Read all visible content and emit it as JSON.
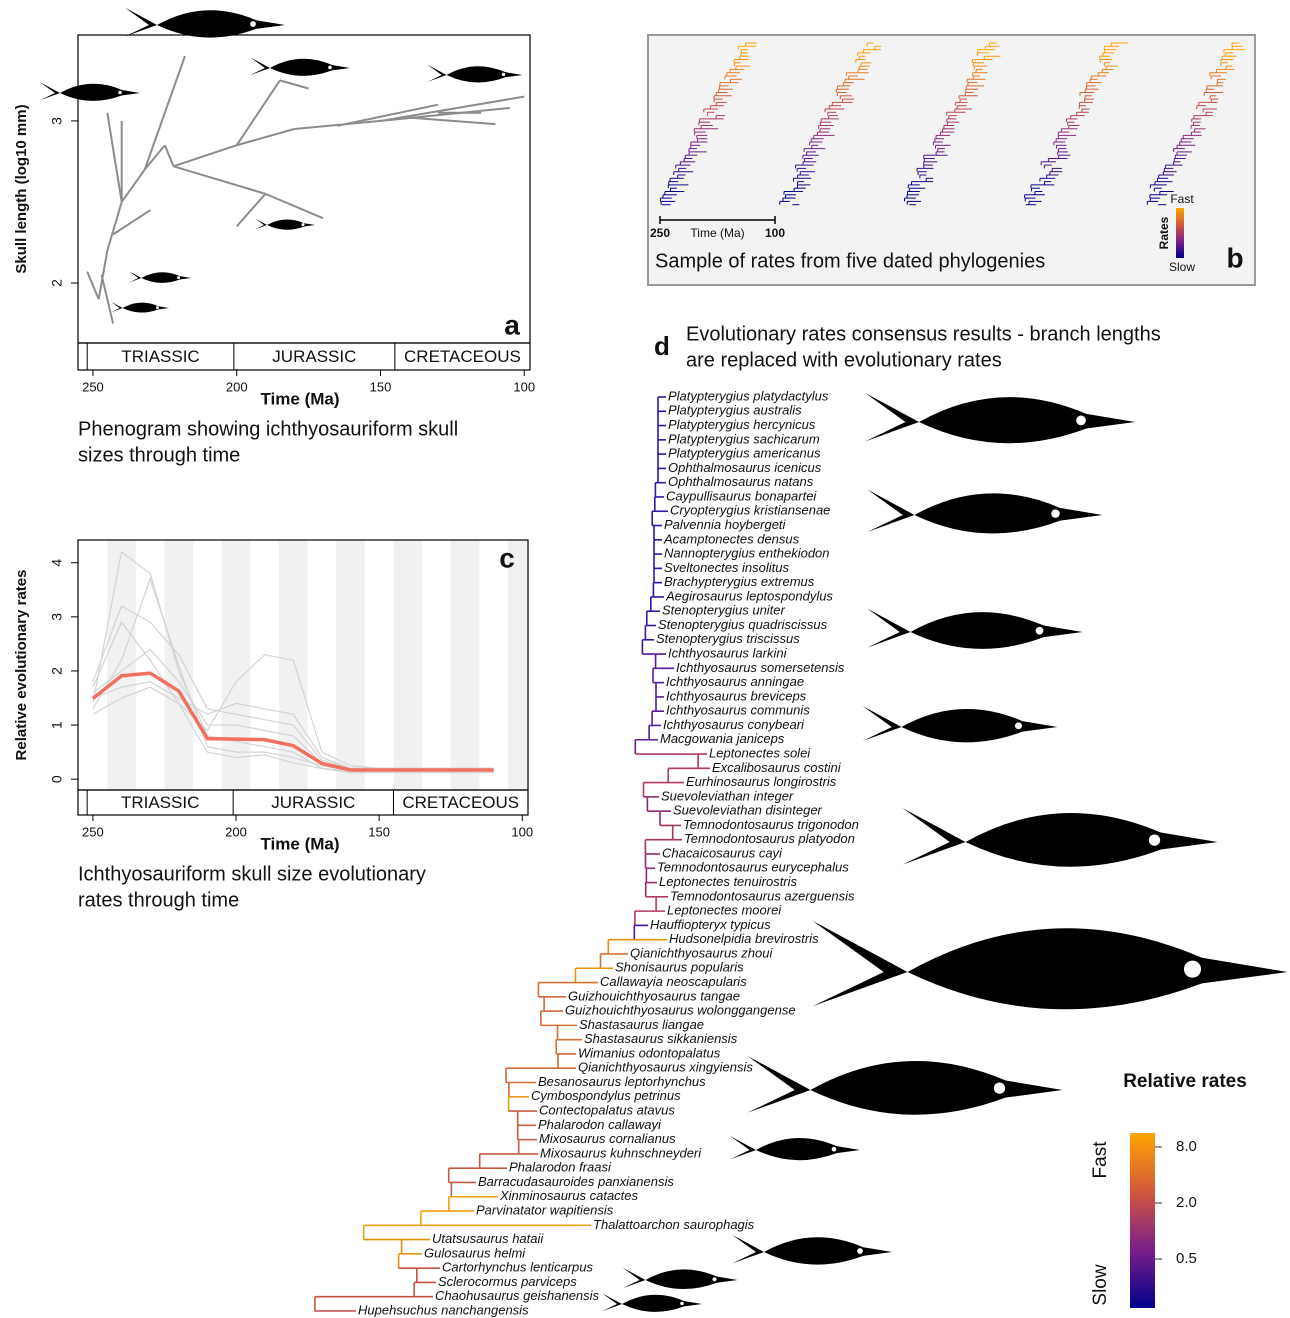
{
  "chart_data": [
    {
      "type": "phenogram",
      "panel": "a",
      "ylabel": "Skull length (log10 mm)",
      "xlabel": "Time (Ma)",
      "caption": [
        "Phenogram showing ichthyosauriform skull",
        "sizes through time"
      ],
      "xlim": [
        255.2,
        98
      ],
      "ylim": [
        1.63,
        3.53
      ],
      "xticks": [
        250,
        200,
        150,
        100
      ],
      "yticks": [
        2,
        3
      ],
      "color": "#8c8c8c",
      "periods": [
        {
          "name": "TRIASSIC",
          "start": 252
        },
        {
          "name": "JURASSIC",
          "start": 201
        },
        {
          "name": "CRETACEOUS",
          "start": 145
        }
      ],
      "branches": [
        {
          "x": [
            252,
            248
          ],
          "values": [
            2.07,
            1.9
          ]
        },
        {
          "x": [
            248,
            245
          ],
          "values": [
            1.9,
            2.2
          ]
        },
        {
          "x": [
            247,
            243
          ],
          "values": [
            2.05,
            1.75
          ]
        },
        {
          "x": [
            245,
            240
          ],
          "values": [
            2.2,
            2.5
          ]
        },
        {
          "x": [
            243,
            230
          ],
          "values": [
            2.3,
            2.45
          ]
        },
        {
          "x": [
            240,
            232
          ],
          "values": [
            2.5,
            2.7
          ]
        },
        {
          "x": [
            240,
            245
          ],
          "values": [
            2.5,
            3.05
          ]
        },
        {
          "x": [
            240,
            240
          ],
          "values": [
            2.5,
            3.0
          ]
        },
        {
          "x": [
            232,
            218
          ],
          "values": [
            2.7,
            3.4
          ]
        },
        {
          "x": [
            232,
            225
          ],
          "values": [
            2.7,
            2.85
          ]
        },
        {
          "x": [
            225,
            222
          ],
          "values": [
            2.85,
            2.72
          ]
        },
        {
          "x": [
            222,
            200
          ],
          "values": [
            2.72,
            2.85
          ]
        },
        {
          "x": [
            200,
            185
          ],
          "values": [
            2.85,
            3.25
          ]
        },
        {
          "x": [
            200,
            180
          ],
          "values": [
            2.85,
            2.95
          ]
        },
        {
          "x": [
            222,
            190
          ],
          "values": [
            2.72,
            2.55
          ]
        },
        {
          "x": [
            190,
            170
          ],
          "values": [
            2.55,
            2.4
          ]
        },
        {
          "x": [
            190,
            200
          ],
          "values": [
            2.55,
            2.35
          ]
        },
        {
          "x": [
            180,
            150
          ],
          "values": [
            2.95,
            3.0
          ]
        },
        {
          "x": [
            165,
            130
          ],
          "values": [
            2.97,
            3.1
          ]
        },
        {
          "x": [
            150,
            100
          ],
          "values": [
            3.0,
            3.15
          ]
        },
        {
          "x": [
            150,
            105
          ],
          "values": [
            3.0,
            3.08
          ]
        },
        {
          "x": [
            140,
            110
          ],
          "values": [
            3.02,
            2.98
          ]
        },
        {
          "x": [
            130,
            115
          ],
          "values": [
            3.05,
            3.05
          ]
        },
        {
          "x": [
            185,
            175
          ],
          "values": [
            3.25,
            3.2
          ]
        }
      ]
    },
    {
      "type": "sample",
      "panel": "b",
      "caption": "Sample of rates from five dated phylogenies",
      "xlabel": "Time (Ma)",
      "xlim": [
        250,
        100
      ],
      "xticks": [
        250,
        100
      ],
      "legend": {
        "title": "Rates",
        "high": "Fast",
        "low": "Slow"
      },
      "colors": [
        "#00008b",
        "#7a1f8a",
        "#d2583d",
        "#ffa500"
      ]
    },
    {
      "type": "line",
      "panel": "c",
      "ylabel": "Relative evolutionary rates",
      "xlabel": "Time (Ma)",
      "caption": [
        "Ichthyosauriform skull size evolutionary",
        "rates through time"
      ],
      "xlim": [
        255.2,
        98
      ],
      "ylim": [
        -0.2,
        4.42
      ],
      "xticks": [
        250,
        200,
        150,
        100
      ],
      "yticks": [
        0,
        1,
        2,
        3,
        4
      ],
      "periods": [
        {
          "name": "TRIASSIC",
          "start": 252
        },
        {
          "name": "JURASSIC",
          "start": 201
        },
        {
          "name": "CRETACEOUS",
          "start": 145
        }
      ],
      "x": [
        250,
        240,
        230,
        220,
        210,
        200,
        190,
        180,
        170,
        160,
        150,
        140,
        130,
        120,
        110
      ],
      "series": [
        {
          "color": "#d3d3d3",
          "values": [
            1.6,
            2.0,
            2.4,
            1.8,
            1.0,
            1.0,
            0.9,
            0.8,
            0.3,
            0.2,
            0.2,
            0.2,
            0.2,
            0.2,
            0.2
          ]
        },
        {
          "color": "#d3d3d3",
          "values": [
            1.4,
            4.2,
            3.8,
            2.0,
            0.8,
            0.7,
            0.6,
            0.5,
            0.2,
            0.15,
            0.15,
            0.15,
            0.15,
            0.15,
            0.15
          ]
        },
        {
          "color": "#d3d3d3",
          "values": [
            1.5,
            1.7,
            1.8,
            1.5,
            1.2,
            1.4,
            1.3,
            1.2,
            0.4,
            0.2,
            0.2,
            0.18,
            0.18,
            0.18,
            0.18
          ]
        },
        {
          "color": "#d3d3d3",
          "values": [
            1.3,
            2.2,
            3.7,
            2.1,
            0.6,
            0.5,
            0.5,
            0.4,
            0.25,
            0.15,
            0.15,
            0.15,
            0.15,
            0.15,
            0.15
          ]
        },
        {
          "color": "#d3d3d3",
          "values": [
            1.7,
            2.9,
            2.2,
            1.4,
            0.9,
            1.8,
            2.3,
            2.2,
            0.5,
            0.25,
            0.2,
            0.2,
            0.2,
            0.2,
            0.2
          ]
        },
        {
          "color": "#d3d3d3",
          "values": [
            1.2,
            1.5,
            1.7,
            1.4,
            0.5,
            0.4,
            0.45,
            0.3,
            0.2,
            0.12,
            0.12,
            0.12,
            0.12,
            0.12,
            0.12
          ]
        },
        {
          "color": "#d3d3d3",
          "values": [
            1.8,
            3.2,
            2.9,
            2.3,
            1.3,
            1.2,
            1.1,
            1.0,
            0.35,
            0.2,
            0.2,
            0.2,
            0.2,
            0.2,
            0.2
          ]
        },
        {
          "color": "#f07060",
          "values": [
            1.49,
            1.91,
            1.96,
            1.63,
            0.75,
            0.74,
            0.73,
            0.62,
            0.29,
            0.17,
            0.17,
            0.17,
            0.17,
            0.17,
            0.17
          ]
        }
      ]
    },
    {
      "type": "tree",
      "panel": "d",
      "title": [
        "Evolutionary rates consensus results - branch lengths",
        "are replaced with evolutionary rates"
      ],
      "legend": {
        "title": "Relative rates",
        "high": "Fast",
        "low": "Slow",
        "scale": "log",
        "lim": [
          0.149,
          11.3
        ],
        "ticks": [
          {
            "value": 8,
            "label": "8.0"
          },
          {
            "value": 2,
            "label": "2.0"
          },
          0.5
        ],
        "colors": [
          "#00008b",
          "#7a1f8a",
          "#d2583d",
          "#ffa500"
        ]
      },
      "taxa": [
        {
          "name": "Platypterygius platydactylus",
          "color": "#2a18a8"
        },
        {
          "name": "Platypterygius australis",
          "color": "#2a18a8"
        },
        {
          "name": "Platypterygius hercynicus",
          "color": "#2a18a8"
        },
        {
          "name": "Platypterygius sachicarum",
          "color": "#2a18a8"
        },
        {
          "name": "Platypterygius americanus",
          "color": "#2a18a8"
        },
        {
          "name": "Ophthalmosaurus icenicus",
          "color": "#2a18a8"
        },
        {
          "name": "Ophthalmosaurus natans",
          "color": "#2a18a8"
        },
        {
          "name": "Caypullisaurus bonapartei",
          "color": "#2a18a8"
        },
        {
          "name": "Cryopterygius kristiansenae",
          "color": "#2a18a8"
        },
        {
          "name": "Palvennia hoybergeti",
          "color": "#2a18a8"
        },
        {
          "name": "Acamptonectes densus",
          "color": "#2a18a8"
        },
        {
          "name": "Nannopterygius enthekiodon",
          "color": "#2a18a8"
        },
        {
          "name": "Sveltonectes insolitus",
          "color": "#2a18a8"
        },
        {
          "name": "Brachypterygius extremus",
          "color": "#2a18a8"
        },
        {
          "name": "Aegirosaurus leptospondylus",
          "color": "#2a18a8"
        },
        {
          "name": "Stenopterygius uniter",
          "color": "#3a189e"
        },
        {
          "name": "Stenopterygius quadriscissus",
          "color": "#3a189e"
        },
        {
          "name": "Stenopterygius triscissus",
          "color": "#3a189e"
        },
        {
          "name": "Ichthyosaurus larkini",
          "color": "#5a1a96"
        },
        {
          "name": "Ichthyosaurus somersetensis",
          "color": "#5a1a96"
        },
        {
          "name": "Ichthyosaurus anningae",
          "color": "#5a1a96"
        },
        {
          "name": "Ichthyosaurus breviceps",
          "color": "#5a1a96"
        },
        {
          "name": "Ichthyosaurus communis",
          "color": "#5a1a96"
        },
        {
          "name": "Ichthyosaurus conybeari",
          "color": "#5a1a96"
        },
        {
          "name": "Macgowania janiceps",
          "color": "#6a1f8e"
        },
        {
          "name": "Leptonectes solei",
          "color": "#b23a5a"
        },
        {
          "name": "Excalibosaurus costini",
          "color": "#b23a5a"
        },
        {
          "name": "Eurhinosaurus longirostris",
          "color": "#b23a5a"
        },
        {
          "name": "Suevoleviathan integer",
          "color": "#8e2a6e"
        },
        {
          "name": "Suevoleviathan disinteger",
          "color": "#8e2a6e"
        },
        {
          "name": "Temnodontosaurus trigonodon",
          "color": "#a8325e"
        },
        {
          "name": "Temnodontosaurus platyodon",
          "color": "#a8325e"
        },
        {
          "name": "Chacaicosaurus cayi",
          "color": "#8e2a6e"
        },
        {
          "name": "Temnodontosaurus eurycephalus",
          "color": "#8e2a6e"
        },
        {
          "name": "Leptonectes tenuirostris",
          "color": "#8e2a6e"
        },
        {
          "name": "Temnodontosaurus azerguensis",
          "color": "#b23a5a"
        },
        {
          "name": "Leptonectes moorei",
          "color": "#b23a5a"
        },
        {
          "name": "Hauffiopteryx typicus",
          "color": "#4a10a0"
        },
        {
          "name": "Hudsonelpidia brevirostris",
          "color": "#e8920c"
        },
        {
          "name": "Qianichthyosaurus zhoui",
          "color": "#d87030"
        },
        {
          "name": "Shonisaurus popularis",
          "color": "#e8920c"
        },
        {
          "name": "Callawayia neoscapularis",
          "color": "#d87030"
        },
        {
          "name": "Guizhouichthyosaurus tangae",
          "color": "#d06a3a"
        },
        {
          "name": "Guizhouichthyosaurus wolonggangense",
          "color": "#d06a3a"
        },
        {
          "name": "Shastasaurus liangae",
          "color": "#d87030"
        },
        {
          "name": "Shastasaurus sikkaniensis",
          "color": "#d87030"
        },
        {
          "name": "Wimanius odontopalatus",
          "color": "#d06a3a"
        },
        {
          "name": "Qianichthyosaurus xingyiensis",
          "color": "#d06a3a"
        },
        {
          "name": "Besanosaurus leptorhynchus",
          "color": "#d87030"
        },
        {
          "name": "Cymbospondylus petrinus",
          "color": "#eb9a12"
        },
        {
          "name": "Contectopalatus atavus",
          "color": "#c55a40"
        },
        {
          "name": "Phalarodon callawayi",
          "color": "#c55a40"
        },
        {
          "name": "Mixosaurus cornalianus",
          "color": "#c55a40"
        },
        {
          "name": "Mixosaurus kuhnschneyderi",
          "color": "#c55a40"
        },
        {
          "name": "Phalarodon fraasi",
          "color": "#c55a40"
        },
        {
          "name": "Barracudasauroides panxianensis",
          "color": "#c55a40"
        },
        {
          "name": "Xinminosaurus catactes",
          "color": "#f0a010"
        },
        {
          "name": "Parvinatator wapitiensis",
          "color": "#f0a010"
        },
        {
          "name": "Thalattoarchon saurophagis",
          "color": "#f0a010"
        },
        {
          "name": "Utatsusaurus hataii",
          "color": "#e0900a"
        },
        {
          "name": "Gulosaurus helmi",
          "color": "#e0900a"
        },
        {
          "name": "Cartorhynchus lenticarpus",
          "color": "#c85040"
        },
        {
          "name": "Sclerocormus parviceps",
          "color": "#c85040"
        },
        {
          "name": "Chaohusaurus geishanensis",
          "color": "#c85040"
        },
        {
          "name": "Hupehsuchus nanchangensis",
          "color": "#c04848"
        }
      ]
    }
  ]
}
